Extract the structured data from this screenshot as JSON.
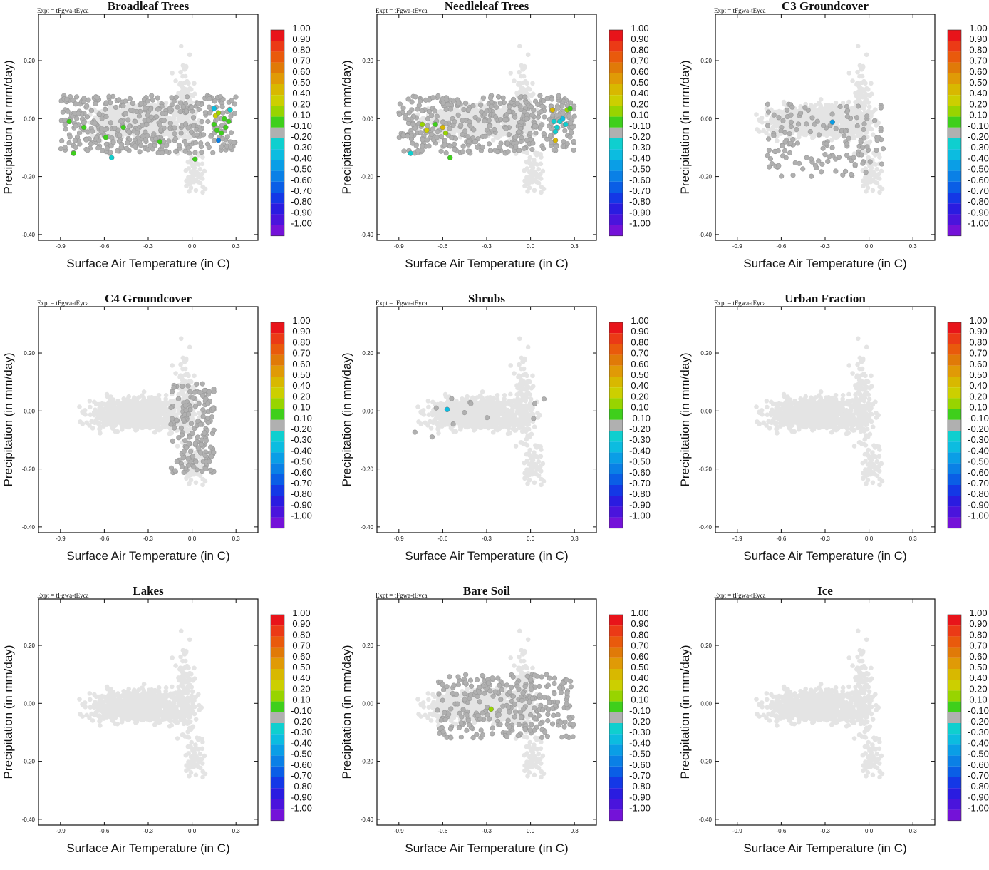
{
  "figure": {
    "expt_label": "Expt = tFgwa-tEyca",
    "xlabel": "Surface Air Temperature (in C)",
    "ylabel": "Precipitation (in mm/day)"
  },
  "colors": {
    "background_points": "#e4e4e4",
    "axis": "#111111"
  },
  "colorbar": {
    "labels": [
      "1.00",
      "0.90",
      "0.80",
      "0.70",
      "0.60",
      "0.50",
      "0.40",
      "0.20",
      "0.10",
      "-0.10",
      "-0.20",
      "-0.30",
      "-0.40",
      "-0.50",
      "-0.60",
      "-0.70",
      "-0.80",
      "-0.90",
      "-1.00"
    ],
    "colors": [
      "#e8141a",
      "#eb3a16",
      "#e95a0c",
      "#e07a08",
      "#e09a06",
      "#d8b800",
      "#cccf00",
      "#98d400",
      "#3fcf1c",
      "#b0b0b0",
      "#0fcfcf",
      "#0cbce0",
      "#0a9ee6",
      "#0a80e6",
      "#0a5ee6",
      "#1438e6",
      "#2a1ce0",
      "#4a14dc",
      "#7412d8"
    ]
  },
  "chart_data": [
    {
      "type": "scatter",
      "title": "Broadleaf Trees",
      "xlabel": "Surface Air Temperature (in C)",
      "ylabel": "Precipitation (in mm/day)",
      "xlim": [
        -1.05,
        0.45
      ],
      "ylim": [
        -0.42,
        0.36
      ],
      "xticks": [
        "-0.9",
        "-0.6",
        "-0.3",
        "0.0",
        "0.3"
      ],
      "yticks": [
        "0.20",
        "0.00",
        "-0.20",
        "-0.40"
      ],
      "dense_region": {
        "x": [
          -0.9,
          0.3
        ],
        "y": [
          -0.12,
          0.08
        ],
        "level": -0.1,
        "count": 420
      },
      "highlight_points": [
        {
          "x": -0.84,
          "y": -0.01,
          "r": 0.1
        },
        {
          "x": -0.74,
          "y": -0.03,
          "r": 0.1
        },
        {
          "x": -0.59,
          "y": -0.065,
          "r": 0.1
        },
        {
          "x": -0.47,
          "y": -0.03,
          "r": 0.1
        },
        {
          "x": -0.81,
          "y": -0.12,
          "r": 0.1
        },
        {
          "x": -0.22,
          "y": -0.08,
          "r": 0.1
        },
        {
          "x": 0.02,
          "y": -0.14,
          "r": 0.1
        },
        {
          "x": -0.55,
          "y": -0.135,
          "r": -0.2
        },
        {
          "x": 0.16,
          "y": 0.01,
          "r": 0.4
        },
        {
          "x": 0.18,
          "y": 0.02,
          "r": 0.2
        },
        {
          "x": 0.15,
          "y": -0.02,
          "r": 0.1
        },
        {
          "x": 0.17,
          "y": -0.04,
          "r": 0.1
        },
        {
          "x": 0.2,
          "y": -0.05,
          "r": 0.1
        },
        {
          "x": 0.23,
          "y": -0.03,
          "r": 0.1
        },
        {
          "x": 0.22,
          "y": 0.0,
          "r": 0.1
        },
        {
          "x": 0.25,
          "y": -0.01,
          "r": 0.1
        },
        {
          "x": 0.15,
          "y": 0.035,
          "r": -0.3
        },
        {
          "x": 0.18,
          "y": -0.075,
          "r": -0.5
        },
        {
          "x": 0.26,
          "y": 0.03,
          "r": -0.2
        }
      ]
    },
    {
      "type": "scatter",
      "title": "Needleleaf Trees",
      "xlabel": "Surface Air Temperature (in C)",
      "ylabel": "Precipitation (in mm/day)",
      "xlim": [
        -1.05,
        0.45
      ],
      "ylim": [
        -0.42,
        0.36
      ],
      "xticks": [
        "-0.9",
        "-0.6",
        "-0.3",
        "0.0",
        "0.3"
      ],
      "yticks": [
        "0.20",
        "0.00",
        "-0.20",
        "-0.40"
      ],
      "dense_region": {
        "x": [
          -0.9,
          0.3
        ],
        "y": [
          -0.12,
          0.08
        ],
        "level": -0.1,
        "count": 420
      },
      "highlight_points": [
        {
          "x": -0.74,
          "y": -0.02,
          "r": 0.2
        },
        {
          "x": -0.71,
          "y": -0.04,
          "r": 0.4
        },
        {
          "x": -0.6,
          "y": -0.03,
          "r": 0.5
        },
        {
          "x": -0.58,
          "y": -0.05,
          "r": 0.2
        },
        {
          "x": -0.65,
          "y": -0.02,
          "r": 0.1
        },
        {
          "x": -0.84,
          "y": -0.06,
          "r": 0.3
        },
        {
          "x": -0.55,
          "y": -0.135,
          "r": 0.1
        },
        {
          "x": -0.82,
          "y": -0.12,
          "r": -0.2
        },
        {
          "x": 0.16,
          "y": -0.01,
          "r": -0.2
        },
        {
          "x": 0.18,
          "y": -0.03,
          "r": -0.2
        },
        {
          "x": 0.2,
          "y": -0.01,
          "r": -0.2
        },
        {
          "x": 0.22,
          "y": 0.0,
          "r": -0.3
        },
        {
          "x": 0.24,
          "y": -0.02,
          "r": -0.2
        },
        {
          "x": 0.17,
          "y": -0.045,
          "r": -0.2
        },
        {
          "x": 0.15,
          "y": 0.03,
          "r": 0.5
        },
        {
          "x": 0.25,
          "y": 0.03,
          "r": 0.2
        },
        {
          "x": 0.27,
          "y": 0.035,
          "r": 0.1
        },
        {
          "x": 0.17,
          "y": -0.075,
          "r": 0.5
        }
      ]
    },
    {
      "type": "scatter",
      "title": "C3 Groundcover",
      "xlabel": "Surface Air Temperature (in C)",
      "ylabel": "Precipitation (in mm/day)",
      "xlim": [
        -1.05,
        0.45
      ],
      "ylim": [
        -0.42,
        0.36
      ],
      "xticks": [
        "-0.9",
        "-0.6",
        "-0.3",
        "0.0",
        "0.3"
      ],
      "yticks": [
        "0.20",
        "0.00",
        "-0.20",
        "-0.40"
      ],
      "dense_region": {
        "x": [
          -0.7,
          0.1
        ],
        "y": [
          -0.2,
          0.05
        ],
        "level": -0.1,
        "count": 150
      },
      "highlight_points": [
        {
          "x": -0.25,
          "y": -0.012,
          "r": -0.4
        }
      ]
    },
    {
      "type": "scatter",
      "title": "C4 Groundcover",
      "xlabel": "Surface Air Temperature (in C)",
      "ylabel": "Precipitation (in mm/day)",
      "xlim": [
        -1.05,
        0.45
      ],
      "ylim": [
        -0.42,
        0.36
      ],
      "xticks": [
        "-0.9",
        "-0.6",
        "-0.3",
        "0.0",
        "0.3"
      ],
      "yticks": [
        "0.20",
        "0.00",
        "-0.20",
        "-0.40"
      ],
      "dense_region": {
        "x": [
          -0.15,
          0.15
        ],
        "y": [
          -0.22,
          0.1
        ],
        "level": -0.1,
        "count": 170
      },
      "highlight_points": []
    },
    {
      "type": "scatter",
      "title": "Shrubs",
      "xlabel": "Surface Air Temperature (in C)",
      "ylabel": "Precipitation (in mm/day)",
      "xlim": [
        -1.05,
        0.45
      ],
      "ylim": [
        -0.42,
        0.36
      ],
      "xticks": [
        "-0.9",
        "-0.6",
        "-0.3",
        "0.0",
        "0.3"
      ],
      "yticks": [
        "0.20",
        "0.00",
        "-0.20",
        "-0.40"
      ],
      "dense_region": {
        "x": [
          -0.9,
          0.1
        ],
        "y": [
          -0.1,
          0.1
        ],
        "level": -0.1,
        "count": 12
      },
      "highlight_points": [
        {
          "x": -0.57,
          "y": 0.005,
          "r": -0.3
        }
      ]
    },
    {
      "type": "scatter",
      "title": "Urban Fraction",
      "xlabel": "Surface Air Temperature (in C)",
      "ylabel": "Precipitation (in mm/day)",
      "xlim": [
        -1.05,
        0.45
      ],
      "ylim": [
        -0.42,
        0.36
      ],
      "xticks": [
        "-0.9",
        "-0.6",
        "-0.3",
        "0.0",
        "0.3"
      ],
      "yticks": [
        "0.20",
        "0.00",
        "-0.20",
        "-0.40"
      ],
      "dense_region": {
        "x": [
          0.0,
          0.0
        ],
        "y": [
          0.0,
          0.0
        ],
        "level": -0.1,
        "count": 0
      },
      "highlight_points": []
    },
    {
      "type": "scatter",
      "title": "Lakes",
      "xlabel": "Surface Air Temperature (in C)",
      "ylabel": "Precipitation (in mm/day)",
      "xlim": [
        -1.05,
        0.45
      ],
      "ylim": [
        -0.42,
        0.36
      ],
      "xticks": [
        "-0.9",
        "-0.6",
        "-0.3",
        "0.0",
        "0.3"
      ],
      "yticks": [
        "0.20",
        "0.00",
        "-0.20",
        "-0.40"
      ],
      "dense_region": {
        "x": [
          0.0,
          0.0
        ],
        "y": [
          0.0,
          0.0
        ],
        "level": -0.1,
        "count": 0
      },
      "highlight_points": []
    },
    {
      "type": "scatter",
      "title": "Bare Soil",
      "xlabel": "Surface Air Temperature (in C)",
      "ylabel": "Precipitation (in mm/day)",
      "xlim": [
        -1.05,
        0.45
      ],
      "ylim": [
        -0.42,
        0.36
      ],
      "xticks": [
        "-0.9",
        "-0.6",
        "-0.3",
        "0.0",
        "0.3"
      ],
      "yticks": [
        "0.20",
        "0.00",
        "-0.20",
        "-0.40"
      ],
      "dense_region": {
        "x": [
          -0.65,
          0.3
        ],
        "y": [
          -0.12,
          0.1
        ],
        "level": -0.1,
        "count": 300
      },
      "highlight_points": [
        {
          "x": -0.27,
          "y": -0.02,
          "r": 0.2
        }
      ]
    },
    {
      "type": "scatter",
      "title": "Ice",
      "xlabel": "Surface Air Temperature (in C)",
      "ylabel": "Precipitation (in mm/day)",
      "xlim": [
        -1.05,
        0.45
      ],
      "ylim": [
        -0.42,
        0.36
      ],
      "xticks": [
        "-0.9",
        "-0.6",
        "-0.3",
        "0.0",
        "0.3"
      ],
      "yticks": [
        "0.20",
        "0.00",
        "-0.20",
        "-0.40"
      ],
      "dense_region": {
        "x": [
          0.0,
          0.0
        ],
        "y": [
          0.0,
          0.0
        ],
        "level": -0.1,
        "count": 0
      },
      "highlight_points": []
    }
  ]
}
